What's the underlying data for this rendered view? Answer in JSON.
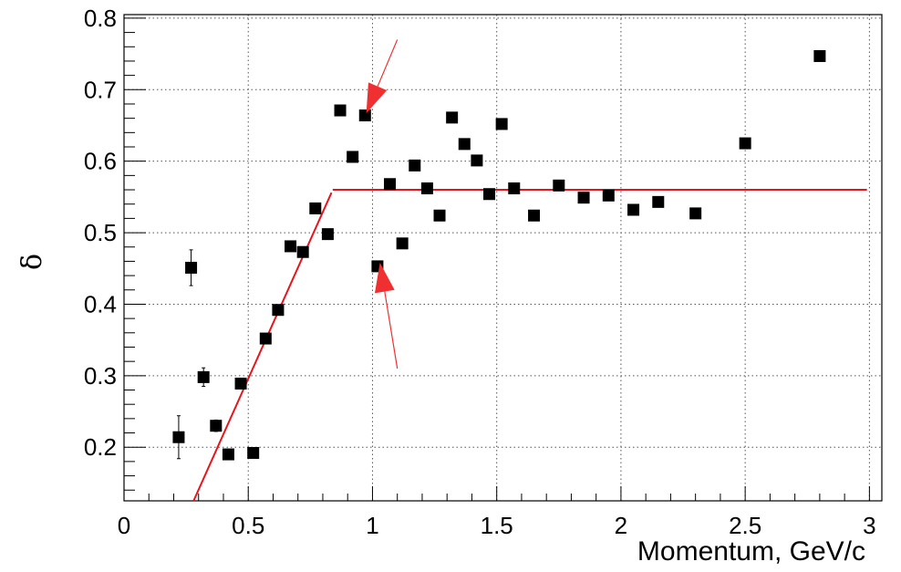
{
  "chart_data": {
    "type": "scatter",
    "title": "",
    "xlabel": "Momentum, GeV/c",
    "ylabel": "δ",
    "xlim": [
      0,
      3.05
    ],
    "ylim": [
      0.125,
      0.805
    ],
    "grid": true,
    "x_ticks": [
      "0",
      "0.5",
      "1",
      "1.5",
      "2",
      "2.5",
      "3"
    ],
    "y_ticks": [
      "0.2",
      "0.3",
      "0.4",
      "0.5",
      "0.6",
      "0.7",
      "0.8"
    ],
    "series": [
      {
        "marker": "square",
        "color": "#000000",
        "points": [
          {
            "x": 0.22,
            "y": 0.214,
            "err": 0.03
          },
          {
            "x": 0.27,
            "y": 0.451,
            "err": 0.025
          },
          {
            "x": 0.32,
            "y": 0.298,
            "err": 0.013
          },
          {
            "x": 0.37,
            "y": 0.23,
            "err": 0.008
          },
          {
            "x": 0.42,
            "y": 0.19
          },
          {
            "x": 0.47,
            "y": 0.289
          },
          {
            "x": 0.52,
            "y": 0.192
          },
          {
            "x": 0.57,
            "y": 0.352
          },
          {
            "x": 0.62,
            "y": 0.392
          },
          {
            "x": 0.67,
            "y": 0.481
          },
          {
            "x": 0.72,
            "y": 0.473
          },
          {
            "x": 0.77,
            "y": 0.534
          },
          {
            "x": 0.82,
            "y": 0.498
          },
          {
            "x": 0.87,
            "y": 0.671
          },
          {
            "x": 0.92,
            "y": 0.606
          },
          {
            "x": 0.97,
            "y": 0.664
          },
          {
            "x": 1.02,
            "y": 0.453
          },
          {
            "x": 1.07,
            "y": 0.568
          },
          {
            "x": 1.12,
            "y": 0.485
          },
          {
            "x": 1.17,
            "y": 0.594
          },
          {
            "x": 1.22,
            "y": 0.562
          },
          {
            "x": 1.27,
            "y": 0.524
          },
          {
            "x": 1.32,
            "y": 0.661
          },
          {
            "x": 1.37,
            "y": 0.624
          },
          {
            "x": 1.42,
            "y": 0.601
          },
          {
            "x": 1.47,
            "y": 0.554
          },
          {
            "x": 1.52,
            "y": 0.652
          },
          {
            "x": 1.57,
            "y": 0.562
          },
          {
            "x": 1.65,
            "y": 0.524
          },
          {
            "x": 1.75,
            "y": 0.566
          },
          {
            "x": 1.85,
            "y": 0.549
          },
          {
            "x": 1.95,
            "y": 0.552
          },
          {
            "x": 2.05,
            "y": 0.532
          },
          {
            "x": 2.15,
            "y": 0.543
          },
          {
            "x": 2.3,
            "y": 0.527
          },
          {
            "x": 2.5,
            "y": 0.625
          },
          {
            "x": 2.8,
            "y": 0.747
          }
        ]
      }
    ],
    "fit_lines": [
      {
        "color": "#e8141b",
        "x": [
          0.28,
          0.835
        ],
        "y": [
          0.125,
          0.556
        ]
      },
      {
        "color": "#e8141b",
        "x": [
          0.84,
          2.99
        ],
        "y": [
          0.56,
          0.56
        ]
      }
    ],
    "arrows": [
      {
        "color": "#f03030",
        "from": {
          "x": 1.1,
          "y": 0.77
        },
        "to": {
          "x": 0.975,
          "y": 0.667
        }
      },
      {
        "color": "#f03030",
        "from": {
          "x": 1.1,
          "y": 0.31
        },
        "to": {
          "x": 1.03,
          "y": 0.458
        }
      }
    ]
  }
}
